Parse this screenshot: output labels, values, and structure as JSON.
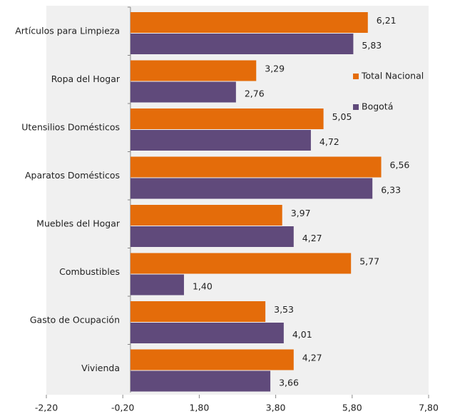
{
  "chart_data": {
    "type": "bar",
    "orientation": "horizontal",
    "categories": [
      "Artículos para Limpieza",
      "Ropa del Hogar",
      "Utensilios Domésticos",
      "Aparatos Domésticos",
      "Muebles del Hogar",
      "Combustibles",
      "Gasto de Ocupación",
      "Vivienda"
    ],
    "series": [
      {
        "name": "Total Nacional",
        "color": "#e46c0a",
        "values": [
          6.21,
          3.29,
          5.05,
          6.56,
          3.97,
          5.77,
          3.53,
          4.27
        ],
        "value_labels": [
          "6,21",
          "3,29",
          "5,05",
          "6,56",
          "3,97",
          "5,77",
          "3,53",
          "4,27"
        ]
      },
      {
        "name": "Bogotá",
        "color": "#604a7b",
        "values": [
          5.83,
          2.76,
          4.72,
          6.33,
          4.27,
          1.4,
          4.01,
          3.66
        ],
        "value_labels": [
          "5,83",
          "2,76",
          "4,72",
          "6,33",
          "4,27",
          "1,40",
          "4,01",
          "3,66"
        ]
      }
    ],
    "xlim": [
      -2.2,
      7.8
    ],
    "xticks": [
      {
        "value": -2.2,
        "label": "-2,20"
      },
      {
        "value": -0.2,
        "label": "-0,20"
      },
      {
        "value": 1.8,
        "label": "1,80"
      },
      {
        "value": 3.8,
        "label": "3,80"
      },
      {
        "value": 5.8,
        "label": "5,80"
      },
      {
        "value": 7.8,
        "label": "7,80"
      }
    ],
    "legend": "right"
  }
}
